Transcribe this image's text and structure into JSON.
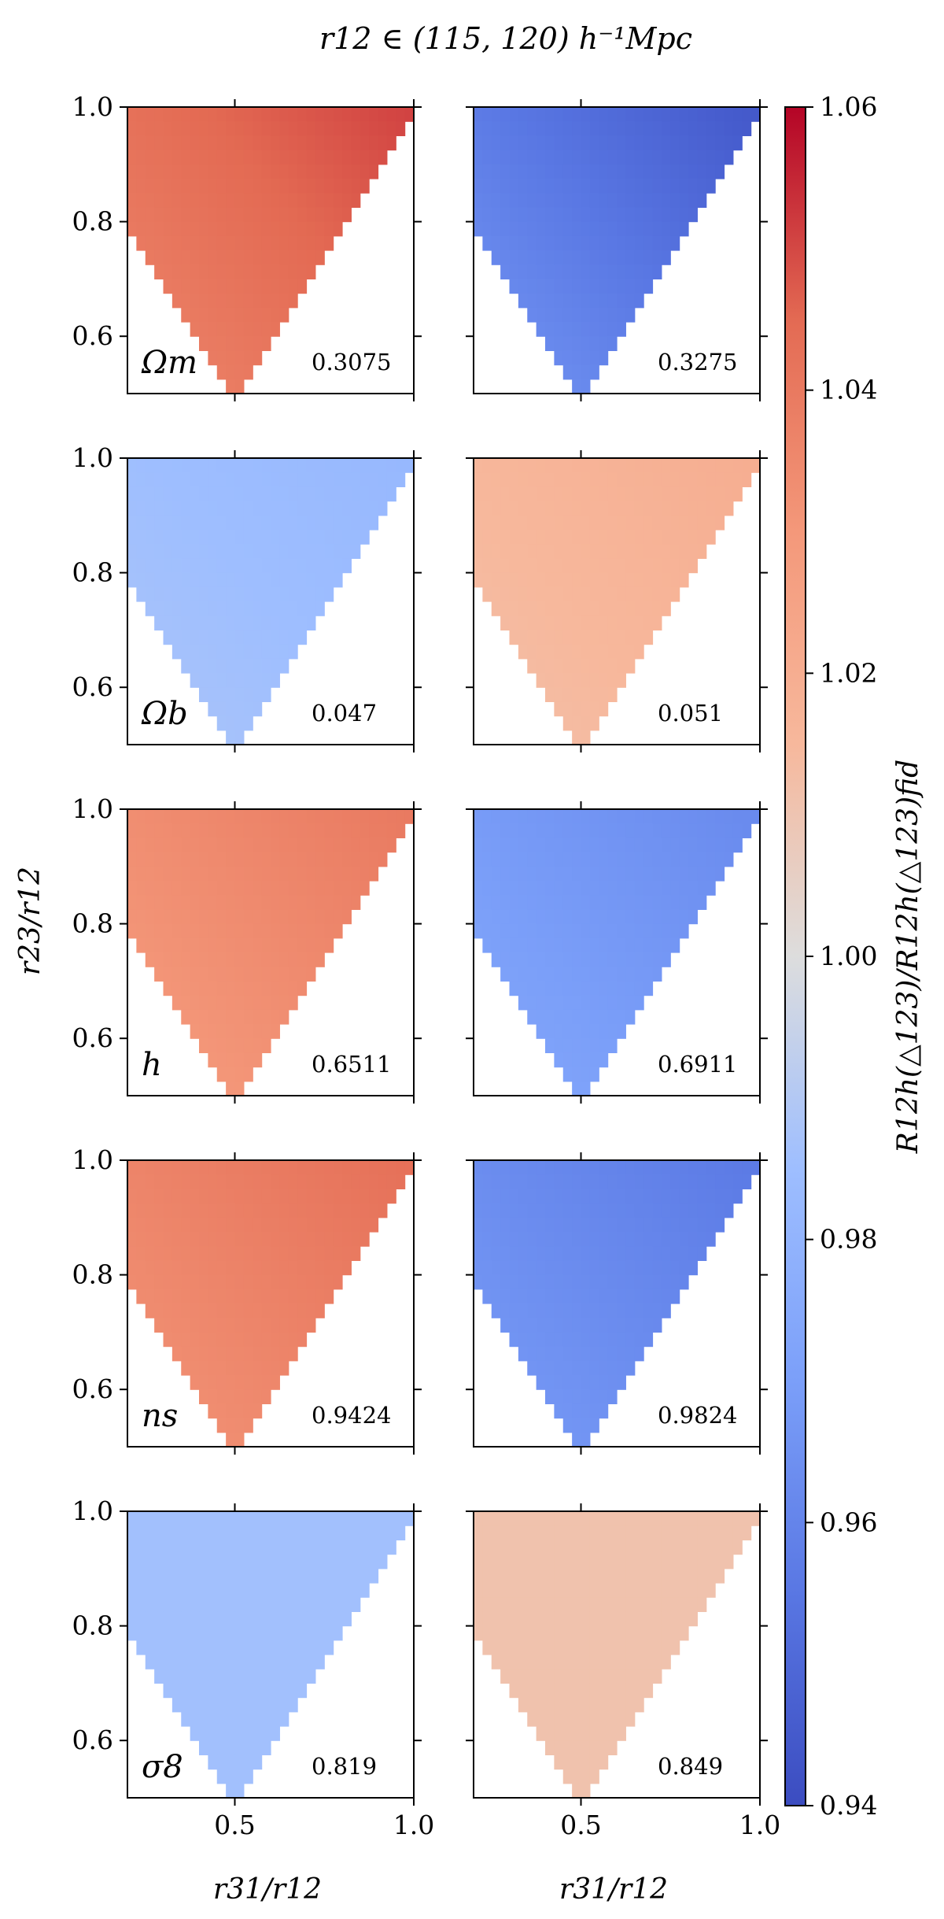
{
  "chart_data": {
    "type": "heatmap",
    "title": "r12 ∈ (115, 120) h⁻¹Mpc",
    "xlabel": "r31/r12",
    "ylabel": "r23/r12",
    "colorbar_label": "R12h(△123)/R12h(△123)fid",
    "xlim": [
      0.2,
      1.0
    ],
    "ylim": [
      0.5,
      1.0
    ],
    "xticks": [
      "0.5",
      "1.0"
    ],
    "yticks": [
      "0.6",
      "0.8",
      "1.0"
    ],
    "colorbar": {
      "min": 0.94,
      "max": 1.06,
      "colormap": "coolwarm",
      "ticks": [
        "0.94",
        "0.96",
        "0.98",
        "1.00",
        "1.02",
        "1.04",
        "1.06"
      ]
    },
    "panels": [
      {
        "param": "Ωm",
        "low_value": "0.3075",
        "high_value": "0.3275",
        "low": {
          "min_ratio": 1.036,
          "max_ratio": 1.051
        },
        "high": {
          "min_ratio": 0.967,
          "max_ratio": 0.944
        }
      },
      {
        "param": "Ωb",
        "low_value": "0.047",
        "high_value": "0.051",
        "low": {
          "min_ratio": 0.988,
          "max_ratio": 0.982
        },
        "high": {
          "min_ratio": 1.012,
          "max_ratio": 1.02
        }
      },
      {
        "param": "h",
        "low_value": "0.6511",
        "high_value": "0.6911",
        "low": {
          "min_ratio": 1.028,
          "max_ratio": 1.04
        },
        "high": {
          "min_ratio": 0.974,
          "max_ratio": 0.962
        }
      },
      {
        "param": "ns",
        "low_value": "0.9424",
        "high_value": "0.9824",
        "low": {
          "min_ratio": 1.031,
          "max_ratio": 1.043
        },
        "high": {
          "min_ratio": 0.969,
          "max_ratio": 0.956
        }
      },
      {
        "param": "σ8",
        "low_value": "0.819",
        "high_value": "0.849",
        "low": {
          "min_ratio": 0.986,
          "max_ratio": 0.986
        },
        "high": {
          "min_ratio": 1.011,
          "max_ratio": 1.011
        }
      }
    ]
  }
}
